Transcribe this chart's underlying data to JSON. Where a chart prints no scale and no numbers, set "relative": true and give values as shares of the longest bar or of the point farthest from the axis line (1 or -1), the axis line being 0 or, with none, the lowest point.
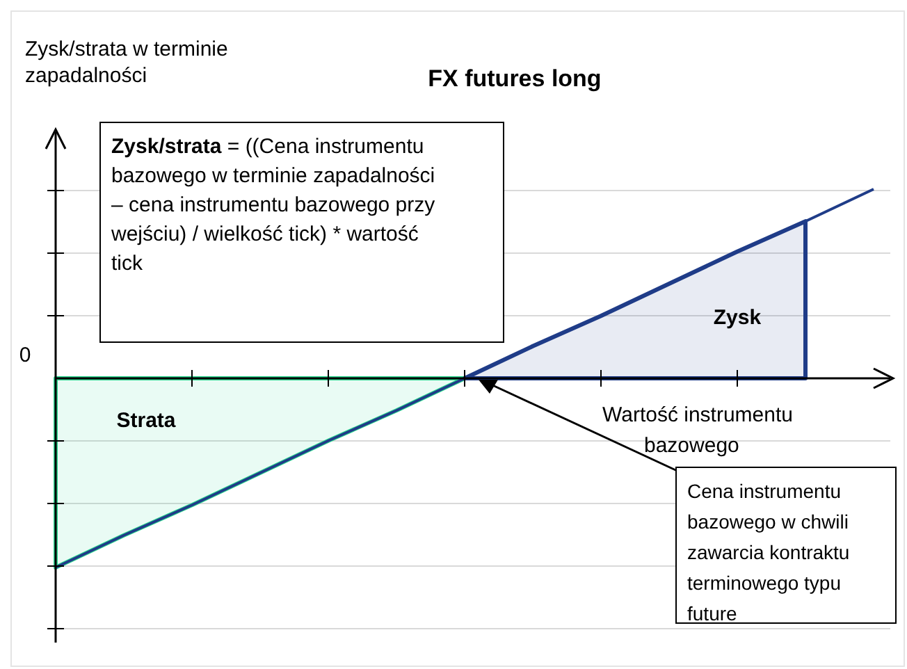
{
  "chart_data": {
    "type": "line",
    "title": "FX futures long",
    "ylabel": "Zysk/strata w terminie zapadalności",
    "xlabel": "Wartość instrumentu bazowego",
    "relative": true,
    "grid": "y",
    "categories": [
      null,
      null,
      null,
      null,
      null,
      null,
      null,
      null,
      null,
      null,
      null,
      null,
      null
    ],
    "series": [
      {
        "type": "area",
        "color": "#2bd68f",
        "values": [
          -1,
          -0.83,
          -0.67,
          -0.5,
          -0.33,
          -0.17,
          0,
          null,
          null,
          null,
          null,
          null,
          null
        ]
      },
      {
        "type": "area",
        "color": "#1f3c88",
        "values": [
          null,
          null,
          null,
          null,
          null,
          null,
          0,
          0.17,
          0.33,
          0.5,
          0.67,
          0.83,
          null
        ]
      },
      {
        "color": "#1f3c88",
        "values": [
          -1,
          -0.83,
          -0.67,
          -0.5,
          -0.33,
          -0.17,
          0,
          0.17,
          0.33,
          0.5,
          0.67,
          0.83,
          1
        ]
      }
    ],
    "annotations": [
      "Zysk/strata = ((Cena instrumentu bazowego w terminie zapadalności – cena instrumentu bazowego przy wejściu) / wielkość tick) * wartość tick",
      "Zysk",
      "Strata",
      "Cena instrumentu bazowego w chwili zawarcia kontraktu terminowego typu future",
      "0"
    ]
  }
}
